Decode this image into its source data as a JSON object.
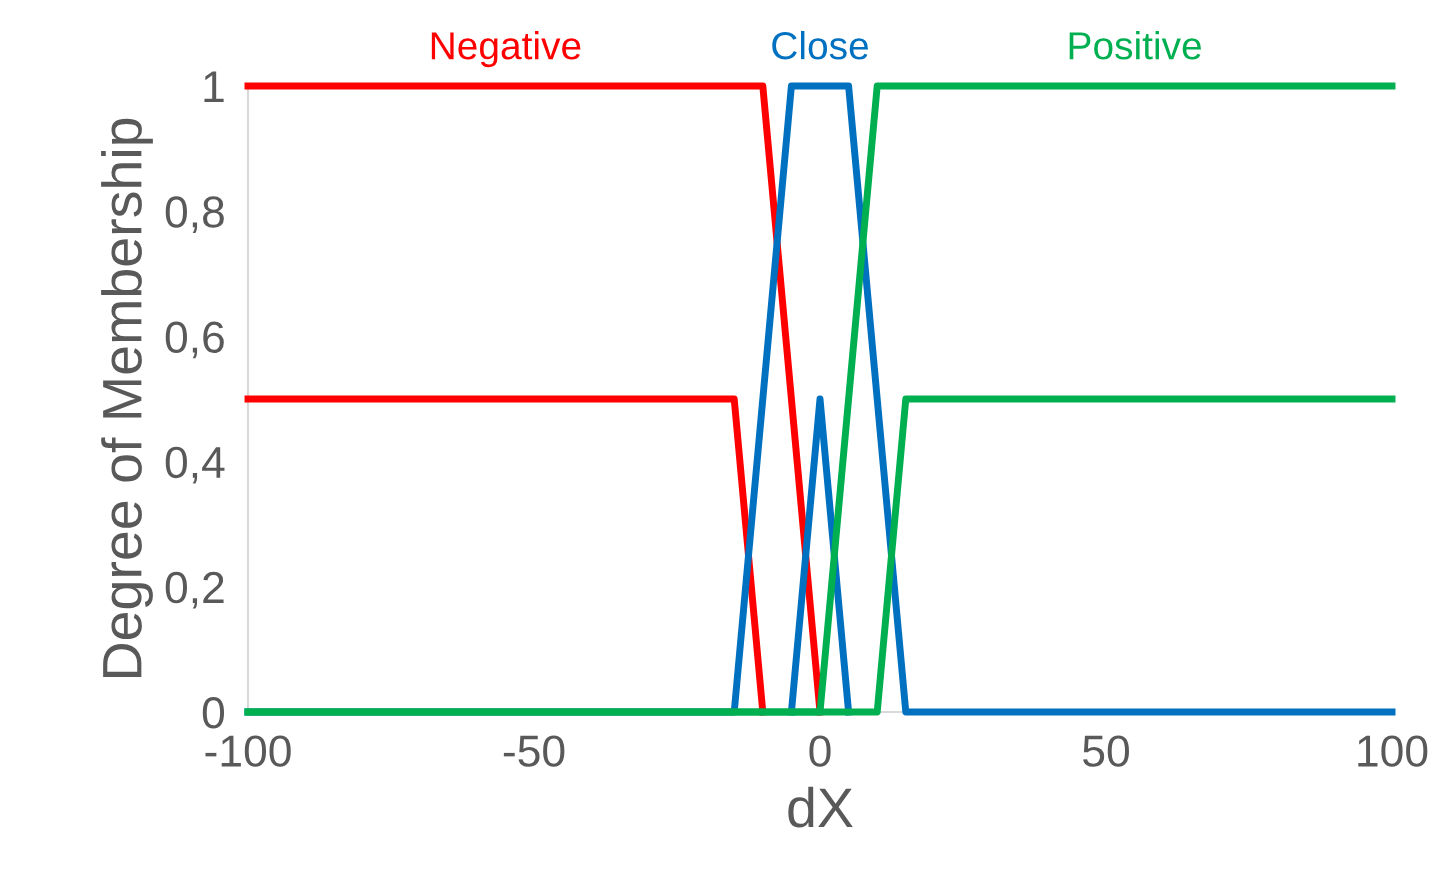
{
  "chart_data": {
    "type": "line",
    "xlabel": "dX",
    "ylabel": "Degree of Membership",
    "xlim": [
      -100,
      100
    ],
    "xticks": [
      -100,
      -50,
      0,
      50,
      100
    ],
    "ylim": [
      0,
      1
    ],
    "yticks": [
      0,
      {
        "value": 0.2,
        "label": "0,2"
      },
      {
        "value": 0.4,
        "label": "0,4"
      },
      {
        "value": 0.6,
        "label": "0,6"
      },
      {
        "value": 0.8,
        "label": "0,8"
      },
      1
    ],
    "grid": false,
    "legend": false,
    "marker": "none",
    "line_style": "solid",
    "series": [
      {
        "name": "Negative",
        "color": "#ff0000",
        "x": [
          -100,
          -10,
          0
        ],
        "values": [
          1,
          1,
          0
        ]
      },
      {
        "color": "#ff0000",
        "x": [
          -100,
          -15,
          -10
        ],
        "values": [
          0.5,
          0.5,
          0
        ]
      },
      {
        "name": "Close",
        "color": "#0070c0",
        "x": [
          -100,
          -15,
          -5,
          5,
          15,
          100
        ],
        "values": [
          0,
          0,
          1,
          1,
          0,
          0
        ]
      },
      {
        "color": "#0070c0",
        "x": [
          -5,
          0,
          5
        ],
        "values": [
          0,
          0.5,
          0
        ]
      },
      {
        "name": "Positive",
        "color": "#00b050",
        "x": [
          -100,
          0,
          10,
          100
        ],
        "values": [
          0,
          0,
          1,
          1
        ]
      },
      {
        "color": "#00b050",
        "x": [
          -100,
          10,
          15,
          100
        ],
        "values": [
          0,
          0,
          0.5,
          0.5
        ]
      }
    ]
  }
}
